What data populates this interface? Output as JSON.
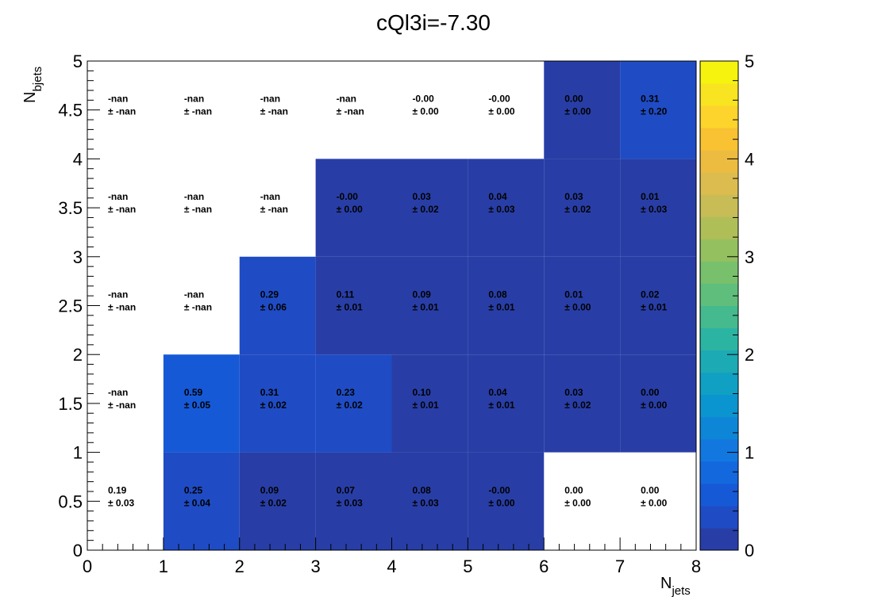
{
  "chart_data": {
    "type": "heatmap",
    "title": "cQl3i=-7.30",
    "xlabel_main": "N",
    "xlabel_sub": "jets",
    "ylabel_main": "N",
    "ylabel_sub": "bjets",
    "xlim": [
      0,
      8
    ],
    "ylim": [
      0,
      5
    ],
    "zlim": [
      0,
      5
    ],
    "x_ticks": [
      "0",
      "1",
      "2",
      "3",
      "4",
      "5",
      "6",
      "7",
      "8"
    ],
    "y_ticks": [
      "0",
      "0.5",
      "1",
      "1.5",
      "2",
      "2.5",
      "3",
      "3.5",
      "4",
      "4.5",
      "5"
    ],
    "z_ticks": [
      "0",
      "1",
      "2",
      "3",
      "4",
      "5"
    ],
    "x_bins": [
      0,
      1,
      2,
      3,
      4,
      5,
      6,
      7,
      8
    ],
    "y_bins": [
      0,
      1,
      2,
      3,
      4,
      5
    ],
    "cells": [
      [
        {
          "value": 0.19,
          "fill": false,
          "text": "0.19",
          "err": "± 0.03"
        },
        {
          "value": 0.25,
          "fill": true,
          "text": "0.25",
          "err": "± 0.04"
        },
        {
          "value": 0.09,
          "fill": true,
          "text": "0.09",
          "err": "± 0.02"
        },
        {
          "value": 0.07,
          "fill": true,
          "text": "0.07",
          "err": "± 0.03"
        },
        {
          "value": 0.08,
          "fill": true,
          "text": "0.08",
          "err": "± 0.03"
        },
        {
          "value": 0.0,
          "fill": true,
          "text": "-0.00",
          "err": "± 0.00"
        },
        {
          "value": 0.0,
          "fill": false,
          "text": "0.00",
          "err": "± 0.00"
        },
        {
          "value": 0.0,
          "fill": false,
          "text": "0.00",
          "err": "± 0.00"
        }
      ],
      [
        {
          "value": null,
          "fill": false,
          "text": "-nan",
          "err": "± -nan"
        },
        {
          "value": 0.59,
          "fill": true,
          "text": "0.59",
          "err": "± 0.05"
        },
        {
          "value": 0.31,
          "fill": true,
          "text": "0.31",
          "err": "± 0.02"
        },
        {
          "value": 0.23,
          "fill": true,
          "text": "0.23",
          "err": "± 0.02"
        },
        {
          "value": 0.1,
          "fill": true,
          "text": "0.10",
          "err": "± 0.01"
        },
        {
          "value": 0.04,
          "fill": true,
          "text": "0.04",
          "err": "± 0.01"
        },
        {
          "value": 0.03,
          "fill": true,
          "text": "0.03",
          "err": "± 0.02"
        },
        {
          "value": 0.0,
          "fill": true,
          "text": "0.00",
          "err": "± 0.00"
        }
      ],
      [
        {
          "value": null,
          "fill": false,
          "text": "-nan",
          "err": "± -nan"
        },
        {
          "value": null,
          "fill": false,
          "text": "-nan",
          "err": "± -nan"
        },
        {
          "value": 0.29,
          "fill": true,
          "text": "0.29",
          "err": "± 0.06"
        },
        {
          "value": 0.11,
          "fill": true,
          "text": "0.11",
          "err": "± 0.01"
        },
        {
          "value": 0.09,
          "fill": true,
          "text": "0.09",
          "err": "± 0.01"
        },
        {
          "value": 0.08,
          "fill": true,
          "text": "0.08",
          "err": "± 0.01"
        },
        {
          "value": 0.01,
          "fill": true,
          "text": "0.01",
          "err": "± 0.00"
        },
        {
          "value": 0.02,
          "fill": true,
          "text": "0.02",
          "err": "± 0.01"
        }
      ],
      [
        {
          "value": null,
          "fill": false,
          "text": "-nan",
          "err": "± -nan"
        },
        {
          "value": null,
          "fill": false,
          "text": "-nan",
          "err": "± -nan"
        },
        {
          "value": null,
          "fill": false,
          "text": "-nan",
          "err": "± -nan"
        },
        {
          "value": 0.0,
          "fill": true,
          "text": "-0.00",
          "err": "± 0.00"
        },
        {
          "value": 0.03,
          "fill": true,
          "text": "0.03",
          "err": "± 0.02"
        },
        {
          "value": 0.04,
          "fill": true,
          "text": "0.04",
          "err": "± 0.03"
        },
        {
          "value": 0.03,
          "fill": true,
          "text": "0.03",
          "err": "± 0.02"
        },
        {
          "value": 0.01,
          "fill": true,
          "text": "0.01",
          "err": "± 0.03"
        }
      ],
      [
        {
          "value": null,
          "fill": false,
          "text": "-nan",
          "err": "± -nan"
        },
        {
          "value": null,
          "fill": false,
          "text": "-nan",
          "err": "± -nan"
        },
        {
          "value": null,
          "fill": false,
          "text": "-nan",
          "err": "± -nan"
        },
        {
          "value": null,
          "fill": false,
          "text": "-nan",
          "err": "± -nan"
        },
        {
          "value": 0.0,
          "fill": false,
          "text": "-0.00",
          "err": "± 0.00"
        },
        {
          "value": 0.0,
          "fill": false,
          "text": "-0.00",
          "err": "± 0.00"
        },
        {
          "value": 0.0,
          "fill": true,
          "text": "0.00",
          "err": "± 0.00"
        },
        {
          "value": 0.31,
          "fill": true,
          "text": "0.31",
          "err": "± 0.20"
        }
      ]
    ],
    "palette": [
      "#283ea6",
      "#1f4cc4",
      "#1659d6",
      "#1468de",
      "#1278e0",
      "#0e86d8",
      "#0b95d0",
      "#10a0c4",
      "#1caab4",
      "#2cb4a2",
      "#44ba8e",
      "#5fbe7c",
      "#78c06c",
      "#94c060",
      "#b0be58",
      "#c8bc56",
      "#dcbc4e",
      "#ecbc40",
      "#f8c232",
      "#fcd42c",
      "#f8e420",
      "#f6f40e"
    ],
    "background_color": "#ffffff"
  }
}
